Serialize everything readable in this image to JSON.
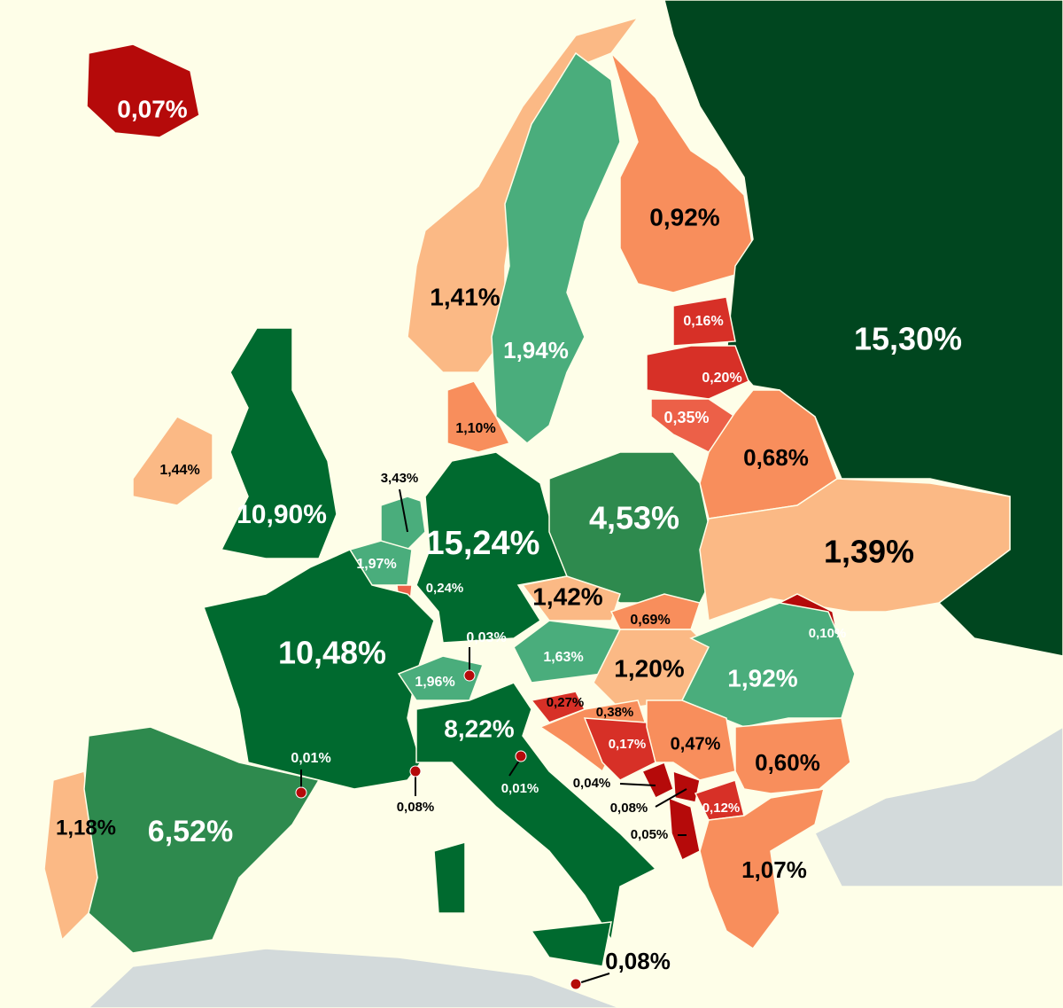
{
  "map": {
    "regions": [
      {
        "label": "0,07%",
        "color": "#b50a0a"
      },
      {
        "label": "1,41%",
        "color": "#fbb985"
      },
      {
        "label": "1,94%",
        "color": "#4aad7c"
      },
      {
        "label": "0,92%",
        "color": "#f88e5c"
      },
      {
        "label": "15,30%",
        "color": "#00461f"
      },
      {
        "label": "0,16%",
        "color": "#d73027"
      },
      {
        "label": "0,20%",
        "color": "#d73027"
      },
      {
        "label": "0,35%",
        "color": "#ec6048"
      },
      {
        "label": "0,68%",
        "color": "#f88e5c"
      },
      {
        "label": "1,10%",
        "color": "#f88e5c"
      },
      {
        "label": "1,44%",
        "color": "#fbb985"
      },
      {
        "label": "10,90%",
        "color": "#006a2f"
      },
      {
        "label": "3,43%",
        "color": "#4aad7c"
      },
      {
        "label": "15,24%",
        "color": "#006a2f"
      },
      {
        "label": "4,53%",
        "color": "#2e8a4e"
      },
      {
        "label": "1,39%",
        "color": "#fbb985"
      },
      {
        "label": "1,97%",
        "color": "#4aad7c"
      },
      {
        "label": "0,24%",
        "color": "#ec6048"
      },
      {
        "label": "1,42%",
        "color": "#fbb985"
      },
      {
        "label": "0,69%",
        "color": "#f88e5c"
      },
      {
        "label": "10,48%",
        "color": "#006a2f"
      },
      {
        "label": "0,03%",
        "color": "#b50a0a"
      },
      {
        "label": "1,63%",
        "color": "#4aad7c"
      },
      {
        "label": "0,10%",
        "color": "#b50a0a"
      },
      {
        "label": "1,20%",
        "color": "#fbb985"
      },
      {
        "label": "1,92%",
        "color": "#4aad7c"
      },
      {
        "label": "1,96%",
        "color": "#4aad7c"
      },
      {
        "label": "0,27%",
        "color": "#d73027"
      },
      {
        "label": "0,38%",
        "color": "#f88e5c"
      },
      {
        "label": "8,22%",
        "color": "#006a2f"
      },
      {
        "label": "0,17%",
        "color": "#d73027"
      },
      {
        "label": "0,47%",
        "color": "#f88e5c"
      },
      {
        "label": "0,60%",
        "color": "#f88e5c"
      },
      {
        "label": "0,01%",
        "color": "#b50a0a"
      },
      {
        "label": "0,04%",
        "color": "#b50a0a"
      },
      {
        "label": "0,08%",
        "color": "#b50a0a"
      },
      {
        "label": "0,01%",
        "color": "#b50a0a"
      },
      {
        "label": "0,08%",
        "color": "#b50a0a"
      },
      {
        "label": "0,12%",
        "color": "#d73027"
      },
      {
        "label": "0,05%",
        "color": "#b50a0a"
      },
      {
        "label": "1,18%",
        "color": "#fbb985"
      },
      {
        "label": "6,52%",
        "color": "#2e8a4e"
      },
      {
        "label": "1,07%",
        "color": "#f88e5c"
      },
      {
        "label": "0,08%",
        "color": "#b50a0a"
      }
    ]
  }
}
